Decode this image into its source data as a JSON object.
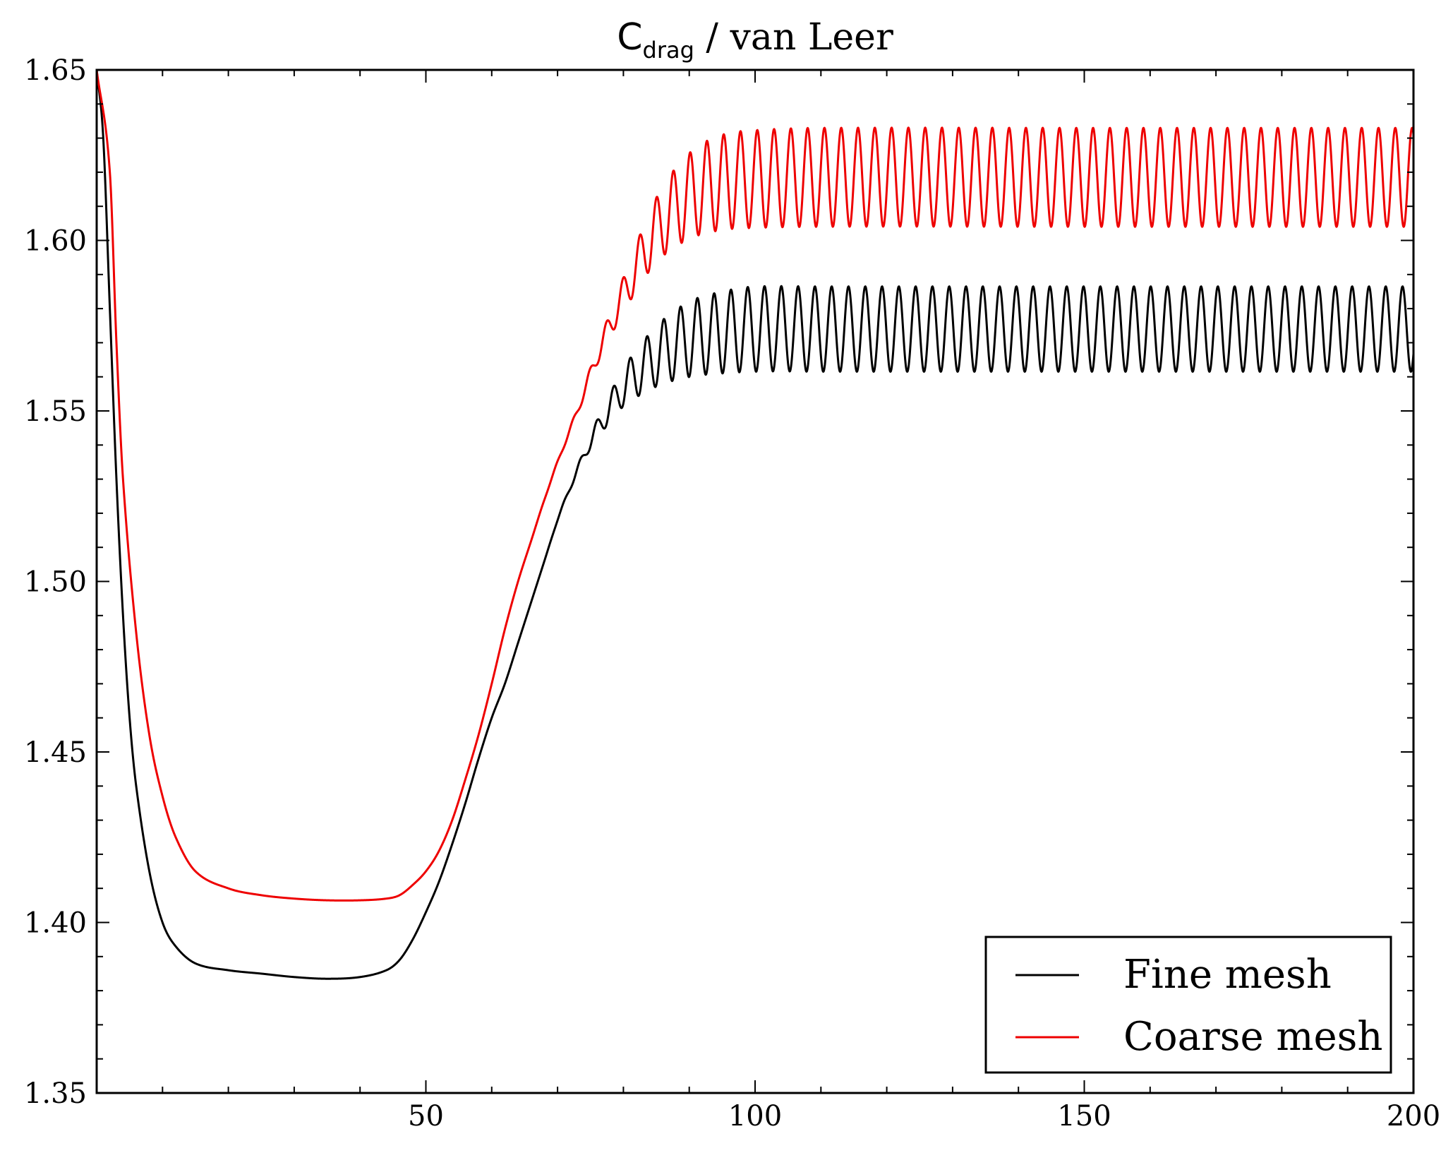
{
  "chart_data": {
    "type": "line",
    "title": {
      "main": "C",
      "subscript": "drag",
      "rest": " / van Leer"
    },
    "xlabel": "",
    "ylabel": "",
    "xlim": [
      0,
      200
    ],
    "ylim": [
      1.35,
      1.65
    ],
    "xticks": [
      50,
      100,
      150,
      200
    ],
    "xtick_labels": [
      "50",
      "100",
      "150",
      "200"
    ],
    "yticks": [
      1.35,
      1.4,
      1.45,
      1.5,
      1.55,
      1.6,
      1.65
    ],
    "ytick_labels": [
      "1.35",
      "1.40",
      "1.45",
      "1.50",
      "1.55",
      "1.60",
      "1.65"
    ],
    "legend_position": "bottom-right",
    "series": [
      {
        "name": "Fine mesh",
        "color": "#000000",
        "start_value": 1.65,
        "min_value": 1.3835,
        "min_at_x": 35,
        "oscillation_mean": 1.574,
        "oscillation_amplitude": 0.0125,
        "oscillation_max": 1.5865,
        "oscillation_min": 1.5615,
        "oscillation_period": 2.55,
        "oscillation_onset_x": 60,
        "points": [
          [
            0,
            1.65
          ],
          [
            1,
            1.63
          ],
          [
            2,
            1.58
          ],
          [
            3,
            1.53
          ],
          [
            4,
            1.49
          ],
          [
            5,
            1.46
          ],
          [
            6,
            1.44
          ],
          [
            8,
            1.415
          ],
          [
            10,
            1.4
          ],
          [
            12,
            1.393
          ],
          [
            15,
            1.388
          ],
          [
            20,
            1.386
          ],
          [
            25,
            1.385
          ],
          [
            30,
            1.384
          ],
          [
            35,
            1.3835
          ],
          [
            40,
            1.384
          ],
          [
            44,
            1.386
          ],
          [
            46,
            1.389
          ],
          [
            48,
            1.395
          ],
          [
            50,
            1.403
          ],
          [
            52,
            1.412
          ],
          [
            54,
            1.423
          ],
          [
            56,
            1.435
          ],
          [
            58,
            1.448
          ],
          [
            60,
            1.46
          ],
          [
            62,
            1.47
          ],
          [
            64,
            1.482
          ],
          [
            66,
            1.494
          ],
          [
            68,
            1.506
          ],
          [
            70,
            1.518
          ],
          [
            72,
            1.528
          ],
          [
            75,
            1.541
          ],
          [
            78,
            1.551
          ],
          [
            80,
            1.557
          ],
          [
            85,
            1.566
          ],
          [
            90,
            1.571
          ],
          [
            95,
            1.573
          ],
          [
            100,
            1.574
          ],
          [
            110,
            1.574
          ],
          [
            150,
            1.574
          ],
          [
            200,
            1.574
          ]
        ]
      },
      {
        "name": "Coarse mesh",
        "color": "#ee0000",
        "start_value": 1.65,
        "min_value": 1.4065,
        "min_at_x": 40,
        "oscillation_mean": 1.6185,
        "oscillation_amplitude": 0.0145,
        "oscillation_max": 1.633,
        "oscillation_min": 1.604,
        "oscillation_period": 2.55,
        "oscillation_onset_x": 64,
        "points": [
          [
            0,
            1.65
          ],
          [
            2,
            1.62
          ],
          [
            3,
            1.57
          ],
          [
            4,
            1.53
          ],
          [
            6,
            1.485
          ],
          [
            8,
            1.455
          ],
          [
            10,
            1.437
          ],
          [
            12,
            1.425
          ],
          [
            15,
            1.415
          ],
          [
            20,
            1.41
          ],
          [
            25,
            1.408
          ],
          [
            30,
            1.407
          ],
          [
            35,
            1.4065
          ],
          [
            40,
            1.4065
          ],
          [
            44,
            1.407
          ],
          [
            46,
            1.408
          ],
          [
            48,
            1.411
          ],
          [
            50,
            1.415
          ],
          [
            52,
            1.421
          ],
          [
            54,
            1.43
          ],
          [
            56,
            1.442
          ],
          [
            58,
            1.455
          ],
          [
            60,
            1.47
          ],
          [
            62,
            1.486
          ],
          [
            64,
            1.5
          ],
          [
            66,
            1.512
          ],
          [
            68,
            1.524
          ],
          [
            70,
            1.535
          ],
          [
            73,
            1.55
          ],
          [
            76,
            1.566
          ],
          [
            80,
            1.584
          ],
          [
            85,
            1.603
          ],
          [
            90,
            1.613
          ],
          [
            95,
            1.617
          ],
          [
            100,
            1.618
          ],
          [
            110,
            1.6185
          ],
          [
            150,
            1.6185
          ],
          [
            200,
            1.6185
          ]
        ]
      }
    ]
  }
}
